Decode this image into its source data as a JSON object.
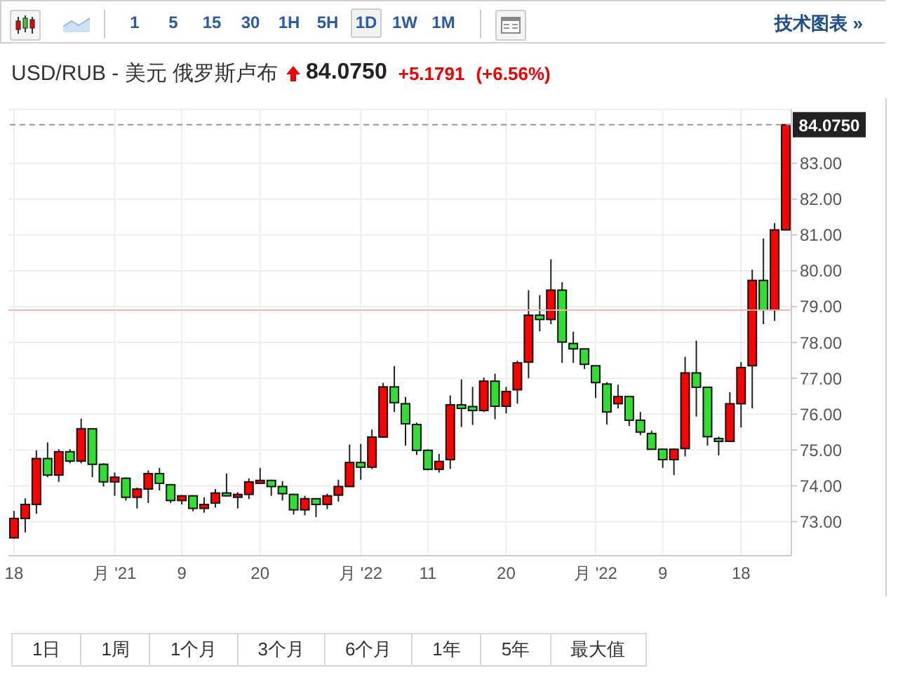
{
  "chart_data": {
    "type": "candlestick",
    "title": "USD/RUB - 美元 俄罗斯卢布",
    "annotations": [
      "1",
      "5",
      "15",
      "30",
      "1H",
      "5H",
      "1D",
      "1W",
      "1M",
      "技术图表 »",
      "84.0750",
      "+5.1791",
      "(+6.56%)",
      "1日",
      "1周",
      "1个月",
      "3个月",
      "6个月",
      "1年",
      "5年",
      "最大值"
    ],
    "categories": [
      "18",
      null,
      null,
      null,
      null,
      null,
      null,
      null,
      null,
      "月 '21",
      null,
      null,
      null,
      null,
      null,
      "9",
      null,
      null,
      null,
      null,
      null,
      null,
      "20",
      null,
      null,
      null,
      null,
      null,
      null,
      null,
      null,
      "月 '22",
      null,
      null,
      null,
      null,
      null,
      "11",
      null,
      null,
      null,
      null,
      null,
      null,
      "20",
      null,
      null,
      null,
      null,
      null,
      null,
      null,
      "月 '22",
      null,
      null,
      null,
      null,
      null,
      "9",
      null,
      null,
      null,
      null,
      null,
      null,
      "18",
      null,
      null,
      null,
      null
    ],
    "ohlc": [
      [
        72.55,
        73.3,
        72.52,
        73.09
      ],
      [
        73.09,
        73.65,
        72.7,
        73.48
      ],
      [
        73.48,
        74.99,
        73.22,
        74.76
      ],
      [
        74.76,
        75.21,
        74.24,
        74.3
      ],
      [
        74.3,
        75.02,
        74.11,
        74.95
      ],
      [
        74.95,
        75.02,
        74.63,
        74.69
      ],
      [
        74.69,
        75.87,
        74.63,
        75.59
      ],
      [
        75.59,
        75.59,
        74.24,
        74.6
      ],
      [
        74.6,
        74.63,
        73.98,
        74.11
      ],
      [
        74.11,
        74.37,
        73.72,
        74.24
      ],
      [
        74.21,
        74.24,
        73.59,
        73.68
      ],
      [
        73.68,
        73.95,
        73.37,
        73.91
      ],
      [
        73.91,
        74.43,
        73.52,
        74.34
      ],
      [
        74.34,
        74.5,
        73.87,
        74.07
      ],
      [
        74.03,
        74.05,
        73.52,
        73.59
      ],
      [
        73.59,
        73.74,
        73.48,
        73.72
      ],
      [
        73.72,
        73.74,
        73.29,
        73.37
      ],
      [
        73.37,
        73.68,
        73.25,
        73.48
      ],
      [
        73.52,
        73.91,
        73.39,
        73.8
      ],
      [
        73.8,
        74.34,
        73.7,
        73.72
      ],
      [
        73.68,
        73.82,
        73.37,
        73.76
      ],
      [
        73.76,
        74.21,
        73.63,
        74.11
      ],
      [
        74.07,
        74.5,
        74.07,
        74.15
      ],
      [
        74.15,
        74.17,
        73.72,
        73.98
      ],
      [
        73.98,
        74.13,
        73.59,
        73.78
      ],
      [
        73.76,
        73.78,
        73.2,
        73.33
      ],
      [
        73.33,
        73.72,
        73.18,
        73.64
      ],
      [
        73.64,
        73.64,
        73.13,
        73.48
      ],
      [
        73.48,
        73.78,
        73.35,
        73.72
      ],
      [
        73.74,
        74.17,
        73.56,
        73.98
      ],
      [
        73.98,
        75.15,
        73.98,
        74.65
      ],
      [
        74.65,
        75.17,
        74.17,
        74.52
      ],
      [
        74.52,
        75.57,
        74.47,
        75.36
      ],
      [
        75.36,
        76.87,
        75.34,
        76.76
      ],
      [
        76.76,
        77.34,
        76.06,
        76.32
      ],
      [
        76.29,
        76.48,
        75.12,
        75.73
      ],
      [
        75.71,
        75.76,
        74.86,
        74.99
      ],
      [
        74.99,
        75.02,
        74.43,
        74.46
      ],
      [
        74.46,
        74.89,
        74.37,
        74.68
      ],
      [
        74.73,
        76.52,
        74.47,
        76.26
      ],
      [
        76.26,
        76.97,
        75.64,
        76.16
      ],
      [
        76.21,
        76.76,
        75.7,
        76.1
      ],
      [
        76.1,
        77.02,
        76.06,
        76.92
      ],
      [
        76.92,
        77.13,
        75.86,
        76.22
      ],
      [
        76.22,
        76.76,
        76.02,
        76.63
      ],
      [
        76.68,
        77.49,
        76.29,
        77.43
      ],
      [
        77.45,
        79.46,
        77.0,
        78.76
      ],
      [
        78.76,
        79.32,
        78.31,
        78.64
      ],
      [
        78.64,
        80.32,
        78.51,
        79.46
      ],
      [
        79.46,
        79.68,
        77.43,
        78.01
      ],
      [
        77.97,
        78.3,
        77.43,
        77.82
      ],
      [
        77.82,
        77.82,
        77.26,
        77.39
      ],
      [
        77.35,
        77.35,
        76.45,
        76.88
      ],
      [
        76.84,
        76.89,
        75.71,
        76.06
      ],
      [
        76.29,
        76.82,
        76.16,
        76.49
      ],
      [
        76.49,
        76.49,
        75.67,
        75.83
      ],
      [
        75.83,
        76.06,
        75.41,
        75.5
      ],
      [
        75.46,
        75.54,
        75.02,
        75.02
      ],
      [
        75.02,
        75.04,
        74.5,
        74.73
      ],
      [
        74.73,
        75.04,
        74.3,
        75.02
      ],
      [
        75.04,
        77.6,
        74.82,
        77.15
      ],
      [
        77.15,
        78.05,
        75.93,
        76.75
      ],
      [
        76.75,
        76.75,
        75.12,
        75.37
      ],
      [
        75.32,
        75.37,
        74.85,
        75.24
      ],
      [
        75.24,
        76.61,
        75.24,
        76.29
      ],
      [
        76.29,
        77.45,
        75.63,
        77.3
      ],
      [
        77.35,
        80.03,
        76.16,
        79.73
      ],
      [
        79.73,
        80.9,
        78.51,
        78.9
      ],
      [
        78.9,
        81.33,
        78.6,
        81.14
      ],
      [
        81.14,
        84.075,
        81.14,
        84.075
      ]
    ],
    "colors": [
      "#ff0000",
      "#ff0000",
      "#ff0000",
      "#33dd33",
      "#ff0000",
      "#33dd33",
      "#ff0000",
      "#33dd33",
      "#33dd33",
      "#ff0000",
      "#33dd33",
      "#ff0000",
      "#ff0000",
      "#33dd33",
      "#33dd33",
      "#ff0000",
      "#33dd33",
      "#ff0000",
      "#ff0000",
      "#33dd33",
      "#ff0000",
      "#ff0000",
      "#ff0000",
      "#33dd33",
      "#33dd33",
      "#33dd33",
      "#ff0000",
      "#33dd33",
      "#ff0000",
      "#ff0000",
      "#ff0000",
      "#33dd33",
      "#ff0000",
      "#ff0000",
      "#33dd33",
      "#33dd33",
      "#33dd33",
      "#33dd33",
      "#ff0000",
      "#ff0000",
      "#33dd33",
      "#33dd33",
      "#ff0000",
      "#33dd33",
      "#ff0000",
      "#ff0000",
      "#ff0000",
      "#33dd33",
      "#ff0000",
      "#33dd33",
      "#33dd33",
      "#33dd33",
      "#33dd33",
      "#33dd33",
      "#ff0000",
      "#33dd33",
      "#33dd33",
      "#33dd33",
      "#33dd33",
      "#ff0000",
      "#ff0000",
      "#33dd33",
      "#33dd33",
      "#33dd33",
      "#ff0000",
      "#ff0000",
      "#ff0000",
      "#33dd33",
      "#ff0000",
      "#ff0000"
    ],
    "ylim": [
      72.05,
      84.5
    ],
    "yticks": [
      {
        "value": 73,
        "label": "73.00"
      },
      {
        "value": 74,
        "label": "74.00"
      },
      {
        "value": 75,
        "label": "75.00"
      },
      {
        "value": 76,
        "label": "76.00"
      },
      {
        "value": 77,
        "label": "77.00"
      },
      {
        "value": 78,
        "label": "78.00"
      },
      {
        "value": 79,
        "label": "79.00"
      },
      {
        "value": 80,
        "label": "80.00"
      },
      {
        "value": 81,
        "label": "81.00"
      },
      {
        "value": 82,
        "label": "82.00"
      },
      {
        "value": 83,
        "label": "83.00"
      }
    ],
    "grid": true,
    "ref_lines": [
      {
        "axis": "y",
        "value": 84.075,
        "label": "84.0750",
        "color": "#999999",
        "line_style": "dashed"
      },
      {
        "axis": "y",
        "value": 78.9,
        "color": "#f4b4b4"
      }
    ]
  }
}
